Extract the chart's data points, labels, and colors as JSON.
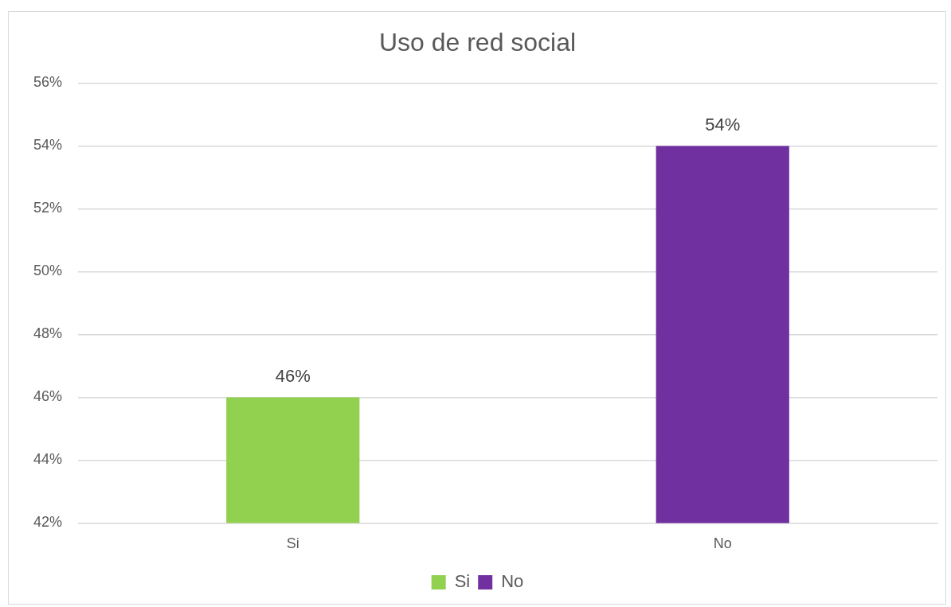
{
  "chart_data": {
    "type": "bar",
    "title": "Uso de red social",
    "categories": [
      "Si",
      "No"
    ],
    "series": [
      {
        "name": "Si",
        "color": "#92d050",
        "values": [
          46,
          null
        ],
        "value_labels": [
          "46%",
          null
        ]
      },
      {
        "name": "No",
        "color": "#7030a0",
        "values": [
          null,
          54
        ],
        "value_labels": [
          null,
          "54%"
        ]
      }
    ],
    "ylim": [
      42,
      56
    ],
    "yticks": [
      {
        "value": 42,
        "label": "42%"
      },
      {
        "value": 44,
        "label": "44%"
      },
      {
        "value": 46,
        "label": "46%"
      },
      {
        "value": 48,
        "label": "48%"
      },
      {
        "value": 50,
        "label": "50%"
      },
      {
        "value": 52,
        "label": "52%"
      },
      {
        "value": 54,
        "label": "54%"
      },
      {
        "value": 56,
        "label": "56%"
      }
    ],
    "grid": "y",
    "legend": "bottom"
  }
}
